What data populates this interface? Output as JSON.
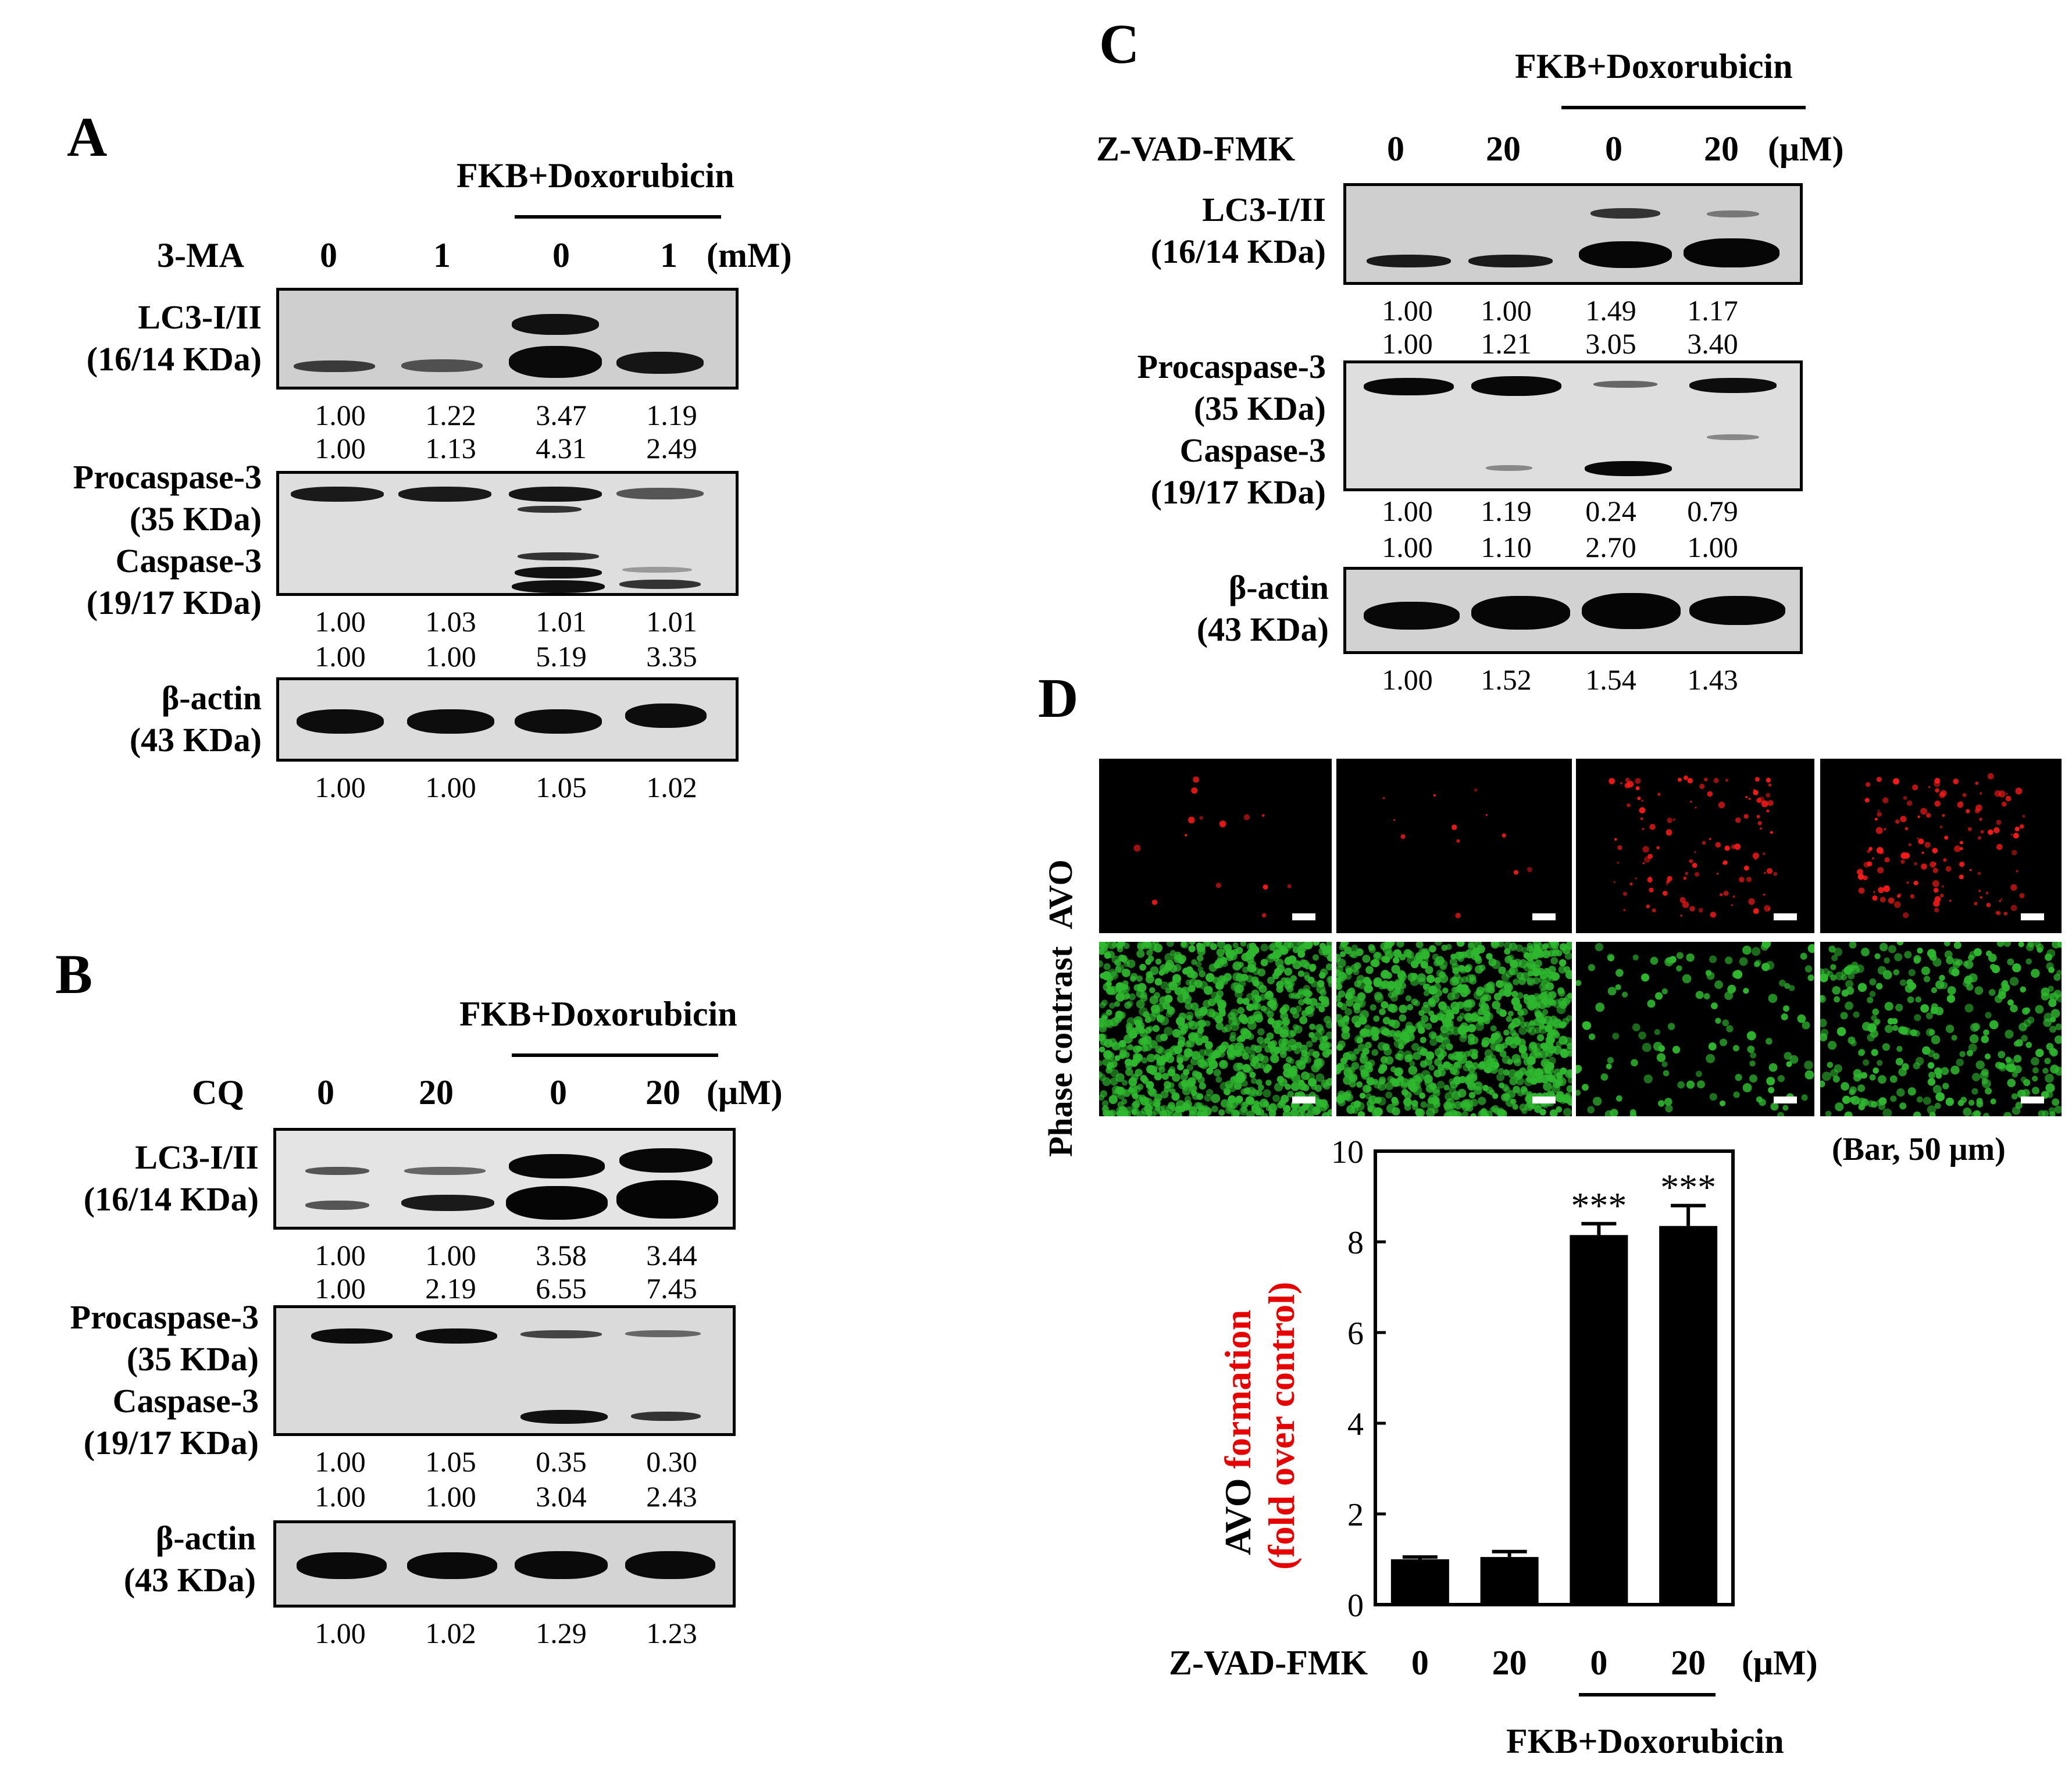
{
  "panel_a": {
    "letter": "A",
    "group_label": "FKB+Doxorubicin",
    "treatment_label": "3-MA",
    "doses": [
      "0",
      "1",
      "0",
      "1"
    ],
    "unit": "(mM)",
    "blots": [
      {
        "name": "LC3-I/II",
        "size": "(16/14 KDa)",
        "values": [
          [
            "1.00",
            "1.22",
            "3.47",
            "1.19"
          ],
          [
            "1.00",
            "1.13",
            "4.31",
            "2.49"
          ]
        ]
      },
      {
        "name": "Procaspase-3",
        "size": "(35 KDa)",
        "name2": "Caspase-3",
        "size2": "(19/17 KDa)",
        "values": [
          [
            "1.00",
            "1.03",
            "1.01",
            "1.01"
          ],
          [
            "1.00",
            "1.00",
            "5.19",
            "3.35"
          ]
        ]
      },
      {
        "name": "β-actin",
        "size": "(43 KDa)",
        "values": [
          [
            "1.00",
            "1.00",
            "1.05",
            "1.02"
          ]
        ]
      }
    ]
  },
  "panel_b": {
    "letter": "B",
    "group_label": "FKB+Doxorubicin",
    "treatment_label": "CQ",
    "doses": [
      "0",
      "20",
      "0",
      "20"
    ],
    "unit": "(μM)",
    "blots": [
      {
        "name": "LC3-I/II",
        "size": "(16/14 KDa)",
        "values": [
          [
            "1.00",
            "1.00",
            "3.58",
            "3.44"
          ],
          [
            "1.00",
            "2.19",
            "6.55",
            "7.45"
          ]
        ]
      },
      {
        "name": "Procaspase-3",
        "size": "(35 KDa)",
        "name2": "Caspase-3",
        "size2": "(19/17 KDa)",
        "values": [
          [
            "1.00",
            "1.05",
            "0.35",
            "0.30"
          ],
          [
            "1.00",
            "1.00",
            "3.04",
            "2.43"
          ]
        ]
      },
      {
        "name": "β-actin",
        "size": "(43 KDa)",
        "values": [
          [
            "1.00",
            "1.02",
            "1.29",
            "1.23"
          ]
        ]
      }
    ]
  },
  "panel_c": {
    "letter": "C",
    "group_label": "FKB+Doxorubicin",
    "treatment_label": "Z-VAD-FMK",
    "doses": [
      "0",
      "20",
      "0",
      "20"
    ],
    "unit": "(μM)",
    "blots": [
      {
        "name": "LC3-I/II",
        "size": "(16/14 KDa)",
        "values": [
          [
            "1.00",
            "1.00",
            "1.49",
            "1.17"
          ],
          [
            "1.00",
            "1.21",
            "3.05",
            "3.40"
          ]
        ]
      },
      {
        "name": "Procaspase-3",
        "size": "(35 KDa)",
        "name2": "Caspase-3",
        "size2": "(19/17 KDa)",
        "values": [
          [
            "1.00",
            "1.19",
            "0.24",
            "0.79"
          ],
          [
            "1.00",
            "1.10",
            "2.70",
            "1.00"
          ]
        ]
      },
      {
        "name": "β-actin",
        "size": "(43 KDa)",
        "values": [
          [
            "1.00",
            "1.52",
            "1.54",
            "1.43"
          ]
        ]
      }
    ]
  },
  "panel_d": {
    "letter": "D",
    "row_labels": {
      "avo": "AVO",
      "phase": "Phase contrast"
    },
    "scale_note": "(Bar, 50 μm)",
    "colors": {
      "avo_dots": "#ff1a1a",
      "phase_cells": "#2fb82f",
      "ylabel_red": "#e60000"
    },
    "chart_data": {
      "type": "bar",
      "categories": [
        "0",
        "20",
        "0",
        "20"
      ],
      "values": [
        1.0,
        1.05,
        8.15,
        8.35
      ],
      "errors": [
        0.05,
        0.12,
        0.25,
        0.45
      ],
      "significance": [
        "",
        "",
        "***",
        "***"
      ],
      "ylabel_part1": "AVO",
      "ylabel_part2": "formation",
      "ylabel_part3": "(fold over control)",
      "ylim": [
        0,
        10
      ],
      "yticks": [
        "0",
        "2",
        "4",
        "6",
        "8",
        "10"
      ],
      "xlabel": "Z-VAD-FMK",
      "x_unit": "(μM)",
      "group_label": "FKB+Doxorubicin"
    }
  }
}
